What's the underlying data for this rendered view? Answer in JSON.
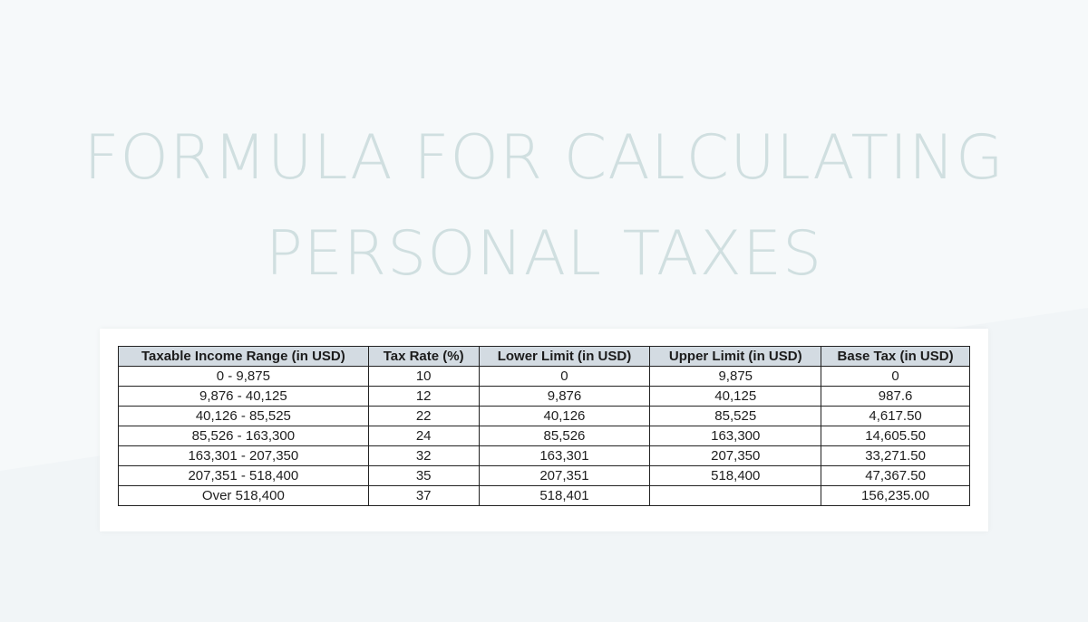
{
  "title": {
    "line1": "FORMULA FOR CALCULATING",
    "line2": "PERSONAL TAXES"
  },
  "table": {
    "headers": [
      "Taxable Income Range (in USD)",
      "Tax Rate (%)",
      "Lower Limit (in USD)",
      "Upper Limit (in USD)",
      "Base Tax (in USD)"
    ],
    "rows": [
      [
        "0 - 9,875",
        "10",
        "0",
        "9,875",
        "0"
      ],
      [
        "9,876 - 40,125",
        "12",
        "9,876",
        "40,125",
        "987.6"
      ],
      [
        "40,126 - 85,525",
        "22",
        "40,126",
        "85,525",
        "4,617.50"
      ],
      [
        "85,526 - 163,300",
        "24",
        "85,526",
        "163,300",
        "14,605.50"
      ],
      [
        "163,301 - 207,350",
        "32",
        "163,301",
        "207,350",
        "33,271.50"
      ],
      [
        "207,351 - 518,400",
        "35",
        "207,351",
        "518,400",
        "47,367.50"
      ],
      [
        "Over 518,400",
        "37",
        "518,401",
        "",
        "156,235.00"
      ]
    ]
  },
  "colors": {
    "background": "#f6f9fa",
    "title": "#d0dfe0",
    "header_fill": "#d3dbe2",
    "border": "#222222"
  }
}
